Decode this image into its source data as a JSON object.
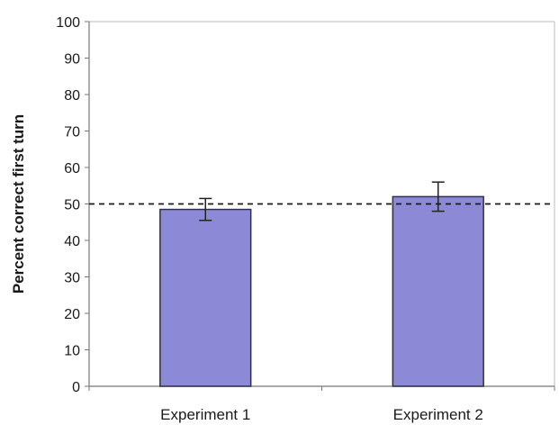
{
  "chart_data": {
    "type": "bar",
    "categories": [
      "Experiment 1",
      "Experiment 2"
    ],
    "series": [
      {
        "values": [
          48.5,
          52.0
        ],
        "error": [
          3.0,
          4.0
        ]
      }
    ],
    "title": "",
    "xlabel": "",
    "ylabel": "Percent correct first turn",
    "ylim": [
      0,
      100
    ],
    "yticks": [
      0,
      10,
      20,
      30,
      40,
      50,
      60,
      70,
      80,
      90,
      100
    ],
    "reference_line": {
      "y": 50,
      "style": "dashed"
    },
    "grid": false,
    "legend": "none",
    "colors": {
      "bar_fill": "#8c8ad6",
      "bar_edge": "#2e2e4e",
      "axis": "#777777",
      "reference": "#1a1a1a"
    }
  }
}
